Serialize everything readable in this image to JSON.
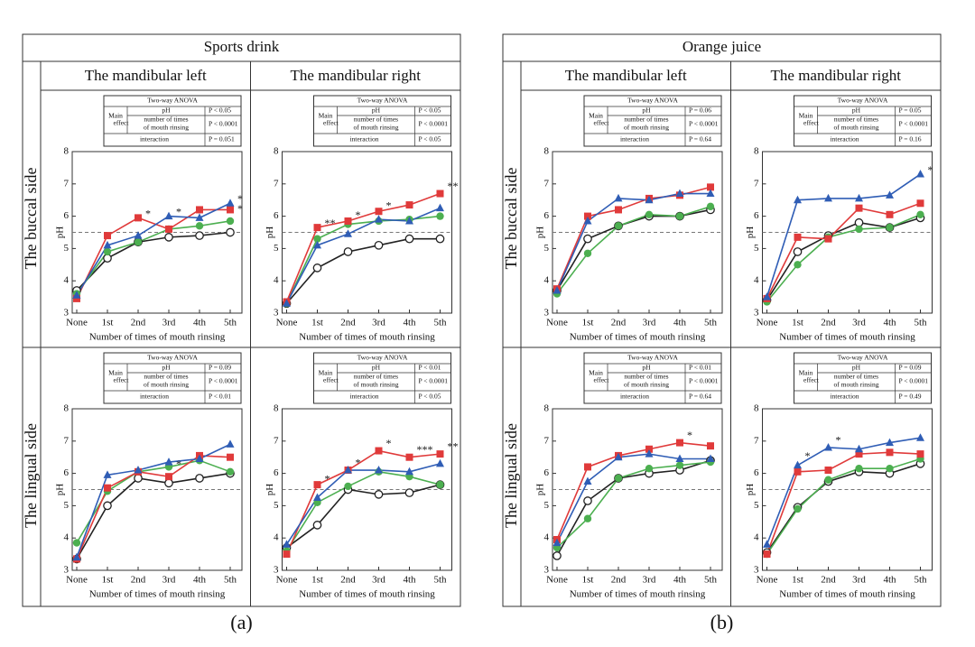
{
  "rows": [
    "The buccal side",
    "The lingual side"
  ],
  "panels": [
    {
      "title": "Sports drink",
      "columns": [
        "The mandibular left",
        "The mandibular right"
      ],
      "label": "(a)"
    },
    {
      "title": "Orange juice",
      "columns": [
        "The mandibular left",
        "The mandibular right"
      ],
      "label": "(b)"
    }
  ],
  "chart_data": [
    {
      "type": "line",
      "categories": [
        "None",
        "1st",
        "2nd",
        "3rd",
        "4th",
        "5th"
      ],
      "ylim": [
        3,
        8
      ],
      "yticks": [
        3,
        4,
        5,
        6,
        7,
        8
      ],
      "y_label": "pH",
      "x_label": "Number of times of mouth rinsing",
      "reference_line": 5.5,
      "anova": {
        "title": "Two-way ANOVA",
        "main_effect": [
          "Main",
          "effect"
        ],
        "factor1": "pH",
        "p1": "P < 0.05",
        "factor2": [
          "number of times",
          "of mouth rinsing"
        ],
        "p2": "P < 0.0001",
        "interaction": "interaction",
        "p3": "P = 0.051"
      },
      "series": [
        {
          "color": "#222222",
          "marker": "open-circle",
          "values": [
            3.7,
            4.7,
            5.2,
            5.35,
            5.4,
            5.5
          ]
        },
        {
          "color": "#4caf50",
          "marker": "circle",
          "values": [
            3.6,
            4.9,
            5.2,
            5.6,
            5.7,
            5.85
          ]
        },
        {
          "color": "#e03a3a",
          "marker": "square",
          "values": [
            3.45,
            5.4,
            5.95,
            5.6,
            6.2,
            6.2
          ]
        },
        {
          "color": "#2f5db5",
          "marker": "triangle",
          "values": [
            3.55,
            5.1,
            5.4,
            6.0,
            5.95,
            6.4
          ]
        }
      ],
      "annotations": [
        {
          "text": "*",
          "x": "2nd",
          "y": 6.0,
          "color": "#e03a3a"
        },
        {
          "text": "*",
          "x": "3rd",
          "y": 6.05,
          "color": "#2f5db5"
        },
        {
          "text": "*",
          "x": "5th",
          "y": 6.45,
          "color": "#2f5db5"
        },
        {
          "text": "*",
          "x": "5th",
          "y": 6.15,
          "color": "#e03a3a"
        }
      ]
    },
    {
      "type": "line",
      "categories": [
        "None",
        "1st",
        "2nd",
        "3rd",
        "4th",
        "5th"
      ],
      "ylim": [
        3,
        8
      ],
      "yticks": [
        3,
        4,
        5,
        6,
        7,
        8
      ],
      "y_label": "pH",
      "x_label": "Number of times of mouth rinsing",
      "reference_line": 5.5,
      "anova": {
        "title": "Two-way ANOVA",
        "main_effect": [
          "Main",
          "effect"
        ],
        "factor1": "pH",
        "p1": "P < 0.05",
        "factor2": [
          "number of times",
          "of mouth rinsing"
        ],
        "p2": "P < 0.0001",
        "interaction": "interaction",
        "p3": "P < 0.05"
      },
      "series": [
        {
          "color": "#222222",
          "marker": "open-circle",
          "values": [
            3.3,
            4.4,
            4.9,
            5.1,
            5.3,
            5.3
          ]
        },
        {
          "color": "#4caf50",
          "marker": "circle",
          "values": [
            3.3,
            5.3,
            5.75,
            5.85,
            5.9,
            6.0
          ]
        },
        {
          "color": "#e03a3a",
          "marker": "square",
          "values": [
            3.35,
            5.65,
            5.85,
            6.15,
            6.35,
            6.7
          ]
        },
        {
          "color": "#2f5db5",
          "marker": "triangle",
          "values": [
            3.3,
            5.1,
            5.45,
            5.9,
            5.85,
            6.25
          ]
        }
      ],
      "annotations": [
        {
          "text": "**",
          "x": "1st",
          "y": 5.7,
          "color": "#e03a3a"
        },
        {
          "text": "*",
          "x": "2nd",
          "y": 5.95,
          "color": "#e03a3a"
        },
        {
          "text": "*",
          "x": "3rd",
          "y": 6.25,
          "color": "#e03a3a"
        },
        {
          "text": "**",
          "x": "5th",
          "y": 6.85,
          "color": "#e03a3a"
        }
      ]
    },
    {
      "type": "line",
      "categories": [
        "None",
        "1st",
        "2nd",
        "3rd",
        "4th",
        "5th"
      ],
      "ylim": [
        3,
        8
      ],
      "yticks": [
        3,
        4,
        5,
        6,
        7,
        8
      ],
      "y_label": "pH",
      "x_label": "Number of times of mouth rinsing",
      "reference_line": 5.5,
      "anova": {
        "title": "Two-way ANOVA",
        "main_effect": [
          "Main",
          "effect"
        ],
        "factor1": "pH",
        "p1": "P = 0.09",
        "factor2": [
          "number of times",
          "of mouth rinsing"
        ],
        "p2": "P < 0.0001",
        "interaction": "interaction",
        "p3": "P < 0.01"
      },
      "series": [
        {
          "color": "#222222",
          "marker": "open-circle",
          "values": [
            3.35,
            5.0,
            5.85,
            5.7,
            5.85,
            6.0
          ]
        },
        {
          "color": "#4caf50",
          "marker": "circle",
          "values": [
            3.85,
            5.45,
            6.05,
            6.2,
            6.4,
            6.05
          ]
        },
        {
          "color": "#e03a3a",
          "marker": "square",
          "values": [
            3.35,
            5.55,
            6.05,
            5.9,
            6.55,
            6.5
          ]
        },
        {
          "color": "#2f5db5",
          "marker": "triangle",
          "values": [
            3.4,
            5.95,
            6.1,
            6.35,
            6.45,
            6.9
          ]
        }
      ],
      "annotations": [
        {
          "text": "*",
          "x": "3rd",
          "y": 6.2,
          "color": "#4caf50"
        }
      ]
    },
    {
      "type": "line",
      "categories": [
        "None",
        "1st",
        "2nd",
        "3rd",
        "4th",
        "5th"
      ],
      "ylim": [
        3,
        8
      ],
      "yticks": [
        3,
        4,
        5,
        6,
        7,
        8
      ],
      "y_label": "pH",
      "x_label": "Number of times of mouth rinsing",
      "reference_line": 5.5,
      "anova": {
        "title": "Two-way ANOVA",
        "main_effect": [
          "Main",
          "effect"
        ],
        "factor1": "pH",
        "p1": "P < 0.01",
        "factor2": [
          "number of times",
          "of mouth rinsing"
        ],
        "p2": "P < 0.0001",
        "interaction": "interaction",
        "p3": "P < 0.05"
      },
      "series": [
        {
          "color": "#222222",
          "marker": "open-circle",
          "values": [
            3.7,
            4.4,
            5.5,
            5.35,
            5.4,
            5.65
          ]
        },
        {
          "color": "#4caf50",
          "marker": "circle",
          "values": [
            3.6,
            5.1,
            5.6,
            6.05,
            5.9,
            5.65
          ]
        },
        {
          "color": "#e03a3a",
          "marker": "square",
          "values": [
            3.5,
            5.65,
            6.1,
            6.7,
            6.5,
            6.6
          ]
        },
        {
          "color": "#2f5db5",
          "marker": "triangle",
          "values": [
            3.8,
            5.25,
            6.1,
            6.1,
            6.05,
            6.3
          ]
        }
      ],
      "annotations": [
        {
          "text": "*",
          "x": "1st",
          "y": 5.75,
          "color": "#e03a3a"
        },
        {
          "text": "*",
          "x": "2nd",
          "y": 6.25,
          "color": "#e03a3a"
        },
        {
          "text": "*",
          "x": "3rd",
          "y": 6.85,
          "color": "#e03a3a"
        },
        {
          "text": "***",
          "x": "4th",
          "y": 6.65,
          "color": "#e03a3a"
        },
        {
          "text": "**",
          "x": "5th",
          "y": 6.75,
          "color": "#e03a3a"
        }
      ]
    },
    {
      "type": "line",
      "categories": [
        "None",
        "1st",
        "2nd",
        "3rd",
        "4th",
        "5th"
      ],
      "ylim": [
        3,
        8
      ],
      "yticks": [
        3,
        4,
        5,
        6,
        7,
        8
      ],
      "y_label": "pH",
      "x_label": "Number of times of mouth rinsing",
      "reference_line": 5.5,
      "anova": {
        "title": "Two-way ANOVA",
        "main_effect": [
          "Main",
          "effect"
        ],
        "factor1": "pH",
        "p1": "P = 0.06",
        "factor2": [
          "number of times",
          "of mouth rinsing"
        ],
        "p2": "P < 0.0001",
        "interaction": "interaction",
        "p3": "P = 0.64"
      },
      "series": [
        {
          "color": "#222222",
          "marker": "open-circle",
          "values": [
            3.7,
            5.3,
            5.7,
            6.0,
            6.0,
            6.2
          ]
        },
        {
          "color": "#4caf50",
          "marker": "circle",
          "values": [
            3.6,
            4.85,
            5.7,
            6.05,
            6.0,
            6.3
          ]
        },
        {
          "color": "#e03a3a",
          "marker": "square",
          "values": [
            3.75,
            6.0,
            6.2,
            6.55,
            6.65,
            6.9
          ]
        },
        {
          "color": "#2f5db5",
          "marker": "triangle",
          "values": [
            3.7,
            5.85,
            6.55,
            6.5,
            6.7,
            6.7
          ]
        }
      ],
      "annotations": []
    },
    {
      "type": "line",
      "categories": [
        "None",
        "1st",
        "2nd",
        "3rd",
        "4th",
        "5th"
      ],
      "ylim": [
        3,
        8
      ],
      "yticks": [
        3,
        4,
        5,
        6,
        7,
        8
      ],
      "y_label": "pH",
      "x_label": "Number of times of mouth rinsing",
      "reference_line": 5.5,
      "anova": {
        "title": "Two-way ANOVA",
        "main_effect": [
          "Main",
          "effect"
        ],
        "factor1": "pH",
        "p1": "P = 0.05",
        "factor2": [
          "number of times",
          "of mouth rinsing"
        ],
        "p2": "P < 0.0001",
        "interaction": "interaction",
        "p3": "P = 0.16"
      },
      "series": [
        {
          "color": "#222222",
          "marker": "open-circle",
          "values": [
            3.4,
            4.9,
            5.4,
            5.8,
            5.65,
            5.95
          ]
        },
        {
          "color": "#4caf50",
          "marker": "circle",
          "values": [
            3.35,
            4.5,
            5.35,
            5.6,
            5.65,
            6.05
          ]
        },
        {
          "color": "#e03a3a",
          "marker": "square",
          "values": [
            3.45,
            5.35,
            5.3,
            6.25,
            6.05,
            6.4
          ]
        },
        {
          "color": "#2f5db5",
          "marker": "triangle",
          "values": [
            3.5,
            6.5,
            6.55,
            6.55,
            6.65,
            7.3
          ]
        }
      ],
      "annotations": [
        {
          "text": "*",
          "x": "5th",
          "y": 7.35,
          "color": "#2f5db5"
        }
      ]
    },
    {
      "type": "line",
      "categories": [
        "None",
        "1st",
        "2nd",
        "3rd",
        "4th",
        "5th"
      ],
      "ylim": [
        3,
        8
      ],
      "yticks": [
        3,
        4,
        5,
        6,
        7,
        8
      ],
      "y_label": "pH",
      "x_label": "Number of times of mouth rinsing",
      "reference_line": 5.5,
      "anova": {
        "title": "Two-way ANOVA",
        "main_effect": [
          "Main",
          "effect"
        ],
        "factor1": "pH",
        "p1": "P < 0.01",
        "factor2": [
          "number of times",
          "of mouth rinsing"
        ],
        "p2": "P < 0.0001",
        "interaction": "interaction",
        "p3": "P = 0.64"
      },
      "series": [
        {
          "color": "#222222",
          "marker": "open-circle",
          "values": [
            3.45,
            5.15,
            5.85,
            6.0,
            6.1,
            6.4
          ]
        },
        {
          "color": "#4caf50",
          "marker": "circle",
          "values": [
            3.7,
            4.6,
            5.85,
            6.15,
            6.25,
            6.35
          ]
        },
        {
          "color": "#e03a3a",
          "marker": "square",
          "values": [
            3.95,
            6.2,
            6.55,
            6.75,
            6.95,
            6.85
          ]
        },
        {
          "color": "#2f5db5",
          "marker": "triangle",
          "values": [
            3.85,
            5.75,
            6.5,
            6.6,
            6.45,
            6.45
          ]
        }
      ],
      "annotations": [
        {
          "text": "*",
          "x": "4th",
          "y": 7.1,
          "color": "#e03a3a"
        }
      ]
    },
    {
      "type": "line",
      "categories": [
        "None",
        "1st",
        "2nd",
        "3rd",
        "4th",
        "5th"
      ],
      "ylim": [
        3,
        8
      ],
      "yticks": [
        3,
        4,
        5,
        6,
        7,
        8
      ],
      "y_label": "pH",
      "x_label": "Number of times of mouth rinsing",
      "reference_line": 5.5,
      "anova": {
        "title": "Two-way ANOVA",
        "main_effect": [
          "Main",
          "effect"
        ],
        "factor1": "pH",
        "p1": "P = 0.09",
        "factor2": [
          "number of times",
          "of mouth rinsing"
        ],
        "p2": "P < 0.0001",
        "interaction": "interaction",
        "p3": "P = 0.49"
      },
      "series": [
        {
          "color": "#222222",
          "marker": "open-circle",
          "values": [
            3.55,
            4.95,
            5.75,
            6.05,
            6.0,
            6.3
          ]
        },
        {
          "color": "#4caf50",
          "marker": "circle",
          "values": [
            3.5,
            4.9,
            5.8,
            6.15,
            6.15,
            6.45
          ]
        },
        {
          "color": "#e03a3a",
          "marker": "square",
          "values": [
            3.5,
            6.05,
            6.1,
            6.6,
            6.65,
            6.6
          ]
        },
        {
          "color": "#2f5db5",
          "marker": "triangle",
          "values": [
            3.8,
            6.25,
            6.8,
            6.75,
            6.95,
            7.1
          ]
        }
      ],
      "annotations": [
        {
          "text": "*",
          "x": "1st",
          "y": 6.45,
          "color": "#e03a3a"
        },
        {
          "text": "*",
          "x": "2nd",
          "y": 6.95,
          "color": "#2f5db5"
        }
      ]
    }
  ]
}
